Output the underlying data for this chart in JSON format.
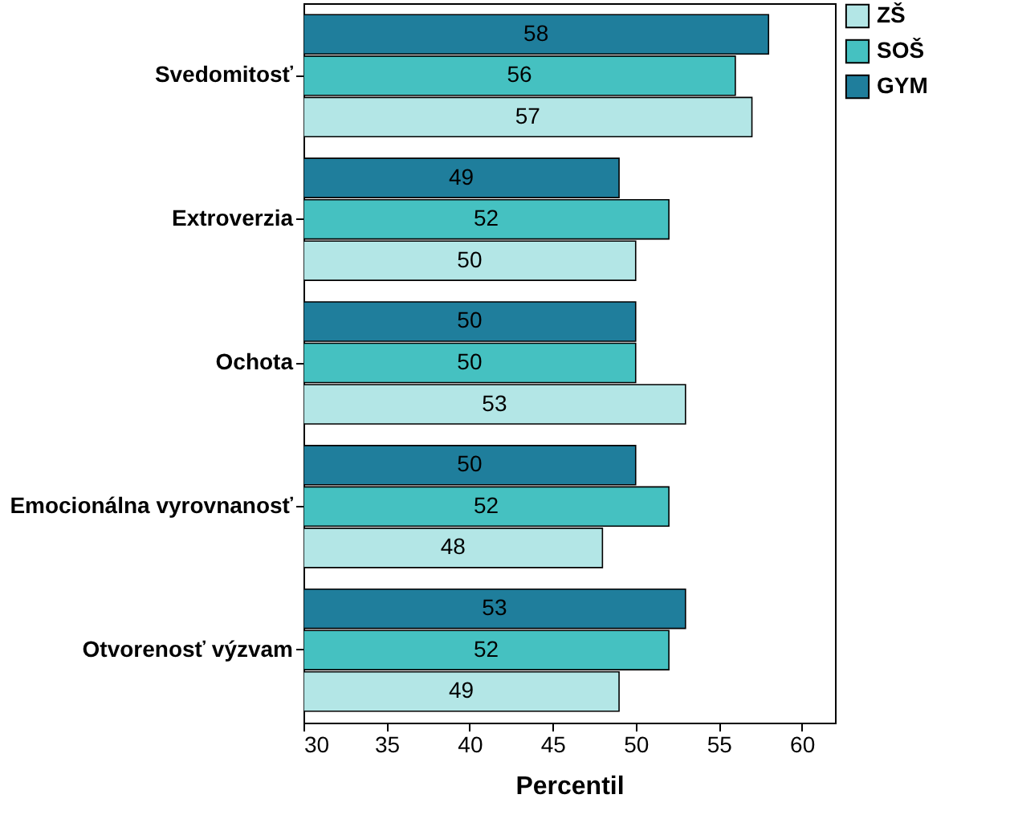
{
  "chart_data": {
    "type": "bar",
    "orientation": "horizontal",
    "xlabel": "Percentil",
    "categories": [
      "Svedomitosť",
      "Extroverzia",
      "Ochota",
      "Emocionálna vyrovnanosť",
      "Otvorenosť výzvam"
    ],
    "series": [
      {
        "name": "ZŠ",
        "color": "#b3e6e6",
        "values": [
          57,
          50,
          53,
          48,
          49
        ]
      },
      {
        "name": "SOŠ",
        "color": "#45c1c1",
        "values": [
          56,
          52,
          50,
          52,
          52
        ]
      },
      {
        "name": "GYM",
        "color": "#1f7e9c",
        "values": [
          58,
          49,
          50,
          50,
          53
        ]
      }
    ],
    "xlim": [
      30,
      62
    ],
    "xticks": [
      30,
      35,
      40,
      45,
      50,
      55,
      60
    ],
    "data_labels": true,
    "grid": false,
    "legend": "top right"
  }
}
